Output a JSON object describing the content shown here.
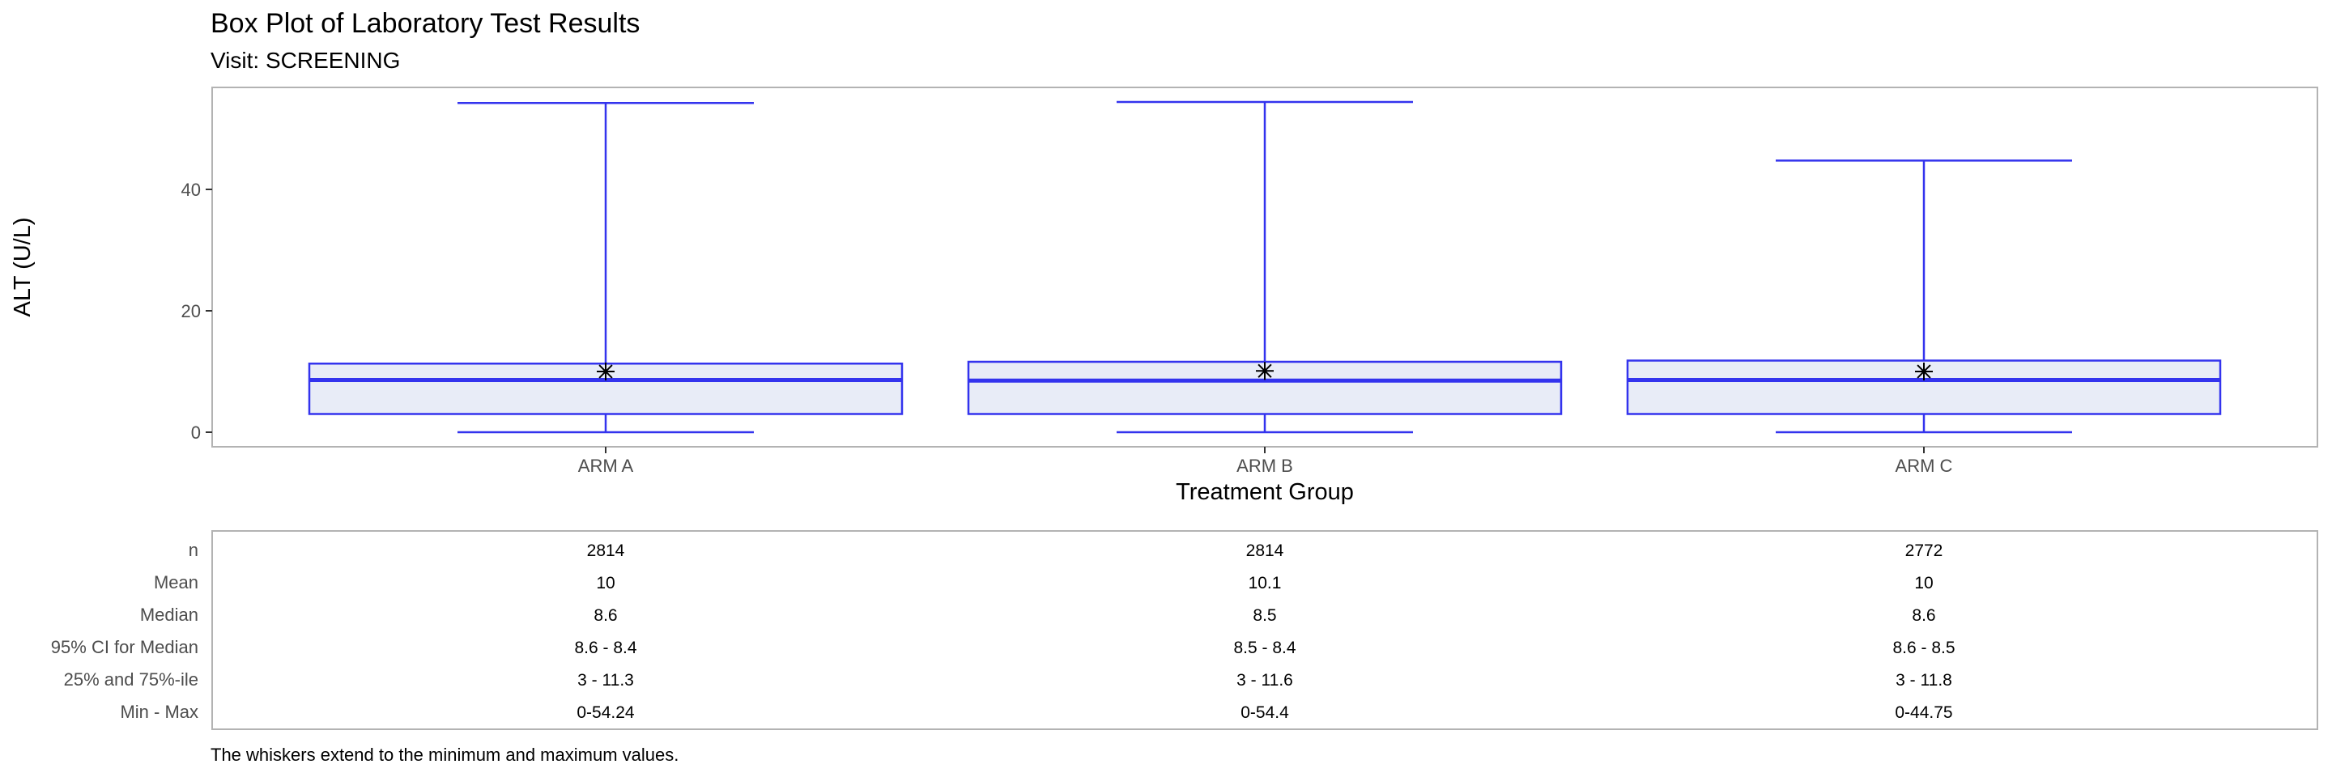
{
  "chart_data": {
    "type": "box",
    "title": "Box Plot of Laboratory Test Results",
    "subtitle": "Visit: SCREENING",
    "xlabel": "Treatment Group",
    "ylabel": "ALT (U/L)",
    "yticks": [
      0,
      20,
      40
    ],
    "ylim": [
      -2.5,
      57.5
    ],
    "grid": false,
    "box_color": "#3333ee",
    "box_fill": "#e8ecf7",
    "mean_marker": "asterisk",
    "categories": [
      "ARM A",
      "ARM B",
      "ARM C"
    ],
    "boxes": [
      {
        "min": 0,
        "q1": 3,
        "median": 8.6,
        "q3": 11.3,
        "max": 54.24,
        "mean": 10
      },
      {
        "min": 0,
        "q1": 3,
        "median": 8.5,
        "q3": 11.6,
        "max": 54.4,
        "mean": 10.1
      },
      {
        "min": 0,
        "q1": 3,
        "median": 8.6,
        "q3": 11.8,
        "max": 44.75,
        "mean": 10
      }
    ],
    "stats_table": {
      "row_labels": [
        "n",
        "Mean",
        "Median",
        "95% CI for Median",
        "25% and 75%-ile",
        "Min - Max"
      ],
      "columns": [
        [
          "2814",
          "10",
          "8.6",
          "8.6 - 8.4",
          "3 - 11.3",
          "0-54.24"
        ],
        [
          "2814",
          "10.1",
          "8.5",
          "8.5 - 8.4",
          "3 - 11.6",
          "0-54.4"
        ],
        [
          "2772",
          "10",
          "8.6",
          "8.6 - 8.5",
          "3 - 11.8",
          "0-44.75"
        ]
      ]
    },
    "footnote": "The whiskers extend to the minimum and maximum values."
  }
}
